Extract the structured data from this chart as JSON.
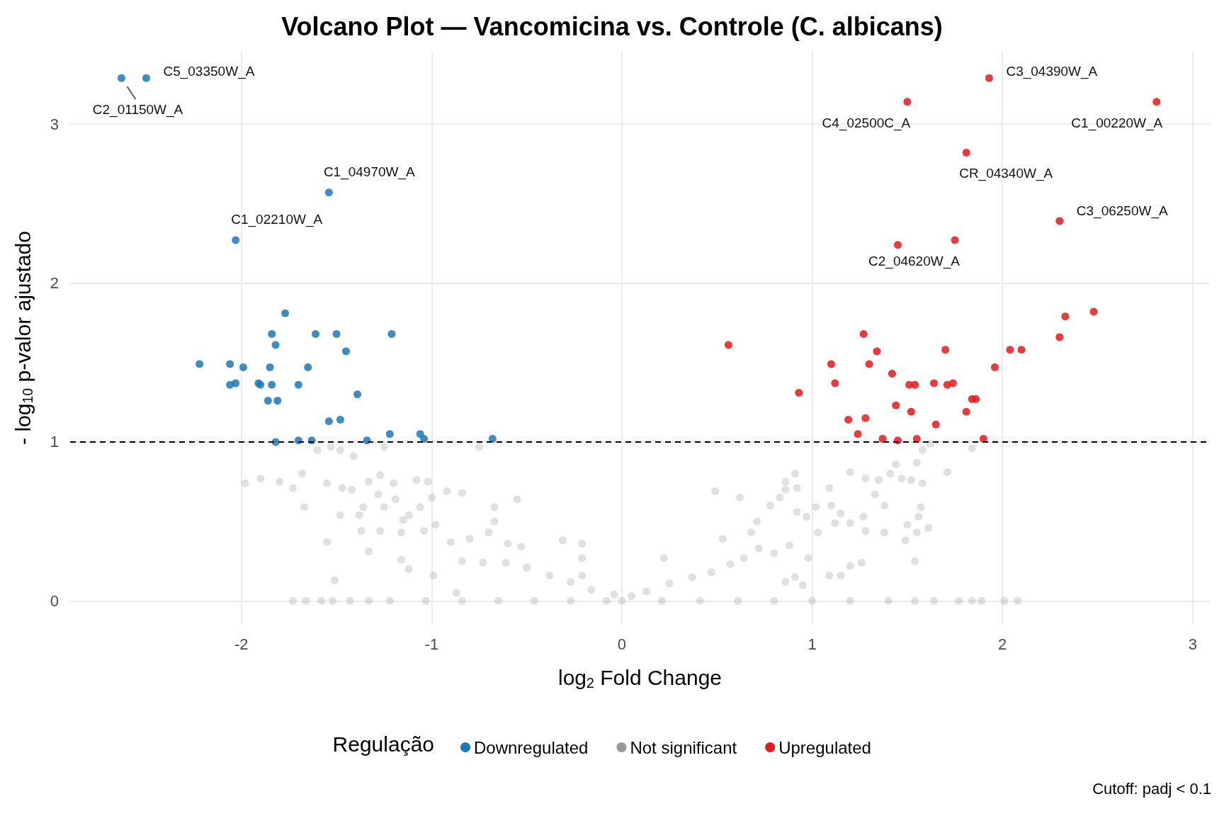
{
  "chart_data": {
    "type": "scatter",
    "title": "Volcano Plot — Vancomicina vs. Controle (C. albicans)",
    "xlabel": "log$_{2}$ Fold Change",
    "ylabel": "- log$_{10}$ p-valor ajustado",
    "legend_title": "Regulação",
    "xlim": [
      -2.9,
      3.09
    ],
    "xticks": [
      -2,
      -1,
      0,
      1,
      2,
      3
    ],
    "ylim": [
      -0.15,
      3.46
    ],
    "yticks": [
      0,
      1,
      2,
      3
    ],
    "grid": true,
    "legend": "bottom",
    "marker": "circle",
    "ref_lines": [
      {
        "axis": "y",
        "value": 1,
        "color": "#000000",
        "line_style": "dashed"
      }
    ],
    "series": [
      {
        "name": "Downregulated",
        "color": "#1f78b4",
        "x": [
          -2.63,
          -2.5,
          -2.03,
          -1.54,
          -1.77,
          -1.84,
          -1.61,
          -1.5,
          -1.21,
          -1.82,
          -1.45,
          -2.22,
          -2.06,
          -1.99,
          -1.85,
          -1.65,
          -2.06,
          -2.03,
          -1.91,
          -1.9,
          -1.84,
          -1.7,
          -1.39,
          -1.86,
          -1.81,
          -1.54,
          -1.48,
          -1.22,
          -1.06,
          -1.04,
          -1.82,
          -1.7,
          -1.63,
          -1.34,
          -0.68
        ],
        "values": [
          3.29,
          3.29,
          2.27,
          2.57,
          1.81,
          1.68,
          1.68,
          1.68,
          1.68,
          1.61,
          1.57,
          1.49,
          1.49,
          1.47,
          1.47,
          1.47,
          1.36,
          1.37,
          1.37,
          1.36,
          1.36,
          1.36,
          1.3,
          1.26,
          1.26,
          1.13,
          1.14,
          1.05,
          1.05,
          1.02,
          1.0,
          1.01,
          1.01,
          1.01,
          1.02
        ]
      },
      {
        "name": "Not significant",
        "color": "#999999",
        "x": [
          -1.98,
          -1.9,
          -1.8,
          -1.73,
          -1.68,
          -1.67,
          -1.6,
          -1.53,
          -1.48,
          -1.41,
          -1.25,
          -0.75,
          -1.55,
          -1.47,
          -1.42,
          -1.33,
          -1.27,
          -1.2,
          -1.08,
          -1.02,
          -1.55,
          -1.51,
          -1.48,
          -1.38,
          -1.36,
          -1.28,
          -1.25,
          -1.19,
          -1.15,
          -1.12,
          -1.06,
          -1.0,
          -0.92,
          -0.84,
          -0.67,
          -0.55,
          -0.67,
          -1.37,
          -1.33,
          -1.27,
          -1.16,
          -1.04,
          -0.98,
          -1.12,
          -1.16,
          -0.99,
          -0.9,
          -0.87,
          -0.8,
          -0.7,
          -0.6,
          -0.53,
          -0.31,
          -0.21,
          -0.21,
          -0.21,
          -0.84,
          -0.73,
          -0.61,
          -0.5,
          -0.38,
          -0.27,
          -0.16,
          -0.04,
          -1.73,
          -1.66,
          -1.58,
          -1.52,
          -1.43,
          -1.33,
          -1.22,
          -1.03,
          -0.84,
          -0.65,
          -0.46,
          -0.27,
          -0.08,
          0,
          1.62,
          1.58,
          1.84,
          1.71,
          1.55,
          1.44,
          1.2,
          0.91,
          0.86,
          0.86,
          0.92,
          0.83,
          0.78,
          0.49,
          0.62,
          0.71,
          0.68,
          0.53,
          0.22,
          0.92,
          0.97,
          1.02,
          1.09,
          1.1,
          1.15,
          1.28,
          1.35,
          1.41,
          1.47,
          1.52,
          1.58,
          1.57,
          1.56,
          1.5,
          1.61,
          1.55,
          1.49,
          1.54,
          1.38,
          1.33,
          1.27,
          1.2,
          1.12,
          1.03,
          1.28,
          1.38,
          1.26,
          1.2,
          1.15,
          1.09,
          0.95,
          0.91,
          0.86,
          0.98,
          0.88,
          0.8,
          0.72,
          0.64,
          0.57,
          0.47,
          0.37,
          0.25,
          0.13,
          0.05,
          0.21,
          0.41,
          0.61,
          0.8,
          1.0,
          1.2,
          1.4,
          1.54,
          1.64,
          1.77,
          1.84,
          1.89,
          2.01,
          2.08
        ],
        "values": [
          0.74,
          0.77,
          0.75,
          0.71,
          0.8,
          0.59,
          0.95,
          0.97,
          0.95,
          0.91,
          0.97,
          0.97,
          0.74,
          0.71,
          0.7,
          0.75,
          0.79,
          0.74,
          0.76,
          0.75,
          0.37,
          0.13,
          0.54,
          0.54,
          0.59,
          0.67,
          0.59,
          0.64,
          0.51,
          0.54,
          0.59,
          0.65,
          0.69,
          0.68,
          0.59,
          0.64,
          0.5,
          0.44,
          0.31,
          0.44,
          0.43,
          0.44,
          0.48,
          0.2,
          0.26,
          0.16,
          0.37,
          0.05,
          0.39,
          0.43,
          0.36,
          0.34,
          0.38,
          0.36,
          0.27,
          0.16,
          0.25,
          0.24,
          0.24,
          0.21,
          0.16,
          0.12,
          0.07,
          0.04,
          0,
          0,
          0,
          0,
          0,
          0,
          0,
          0,
          0,
          0,
          0,
          0,
          0,
          0,
          0.99,
          0.95,
          0.96,
          0.81,
          0.87,
          0.86,
          0.81,
          0.8,
          0.75,
          0.7,
          0.71,
          0.65,
          0.6,
          0.69,
          0.65,
          0.5,
          0.43,
          0.39,
          0.27,
          0.56,
          0.53,
          0.59,
          0.71,
          0.6,
          0.55,
          0.77,
          0.76,
          0.8,
          0.77,
          0.76,
          0.74,
          0.59,
          0.53,
          0.48,
          0.46,
          0.43,
          0.38,
          0.25,
          0.6,
          0.67,
          0.53,
          0.49,
          0.49,
          0.43,
          0.44,
          0.43,
          0.24,
          0.22,
          0.16,
          0.16,
          0.1,
          0.15,
          0.12,
          0.27,
          0.35,
          0.3,
          0.33,
          0.27,
          0.23,
          0.18,
          0.15,
          0.11,
          0.06,
          0.03,
          0,
          0,
          0,
          0,
          0,
          0,
          0,
          0,
          0,
          0,
          0,
          0,
          0,
          0
        ]
      },
      {
        "name": "Upregulated",
        "color": "#e31a1c",
        "x": [
          1.93,
          1.5,
          2.81,
          1.81,
          2.3,
          1.45,
          1.75,
          2.48,
          2.33,
          2.3,
          0.56,
          1.27,
          1.34,
          1.7,
          2.04,
          2.1,
          1.1,
          1.3,
          1.96,
          1.42,
          1.12,
          1.51,
          1.54,
          1.64,
          1.71,
          1.74,
          0.93,
          1.84,
          1.86,
          1.44,
          1.52,
          1.81,
          1.19,
          1.28,
          1.65,
          1.24,
          1.37,
          1.45,
          1.55,
          1.9
        ],
        "values": [
          3.29,
          3.14,
          3.14,
          2.82,
          2.39,
          2.24,
          2.27,
          1.82,
          1.79,
          1.66,
          1.61,
          1.68,
          1.57,
          1.58,
          1.58,
          1.58,
          1.49,
          1.49,
          1.47,
          1.43,
          1.37,
          1.36,
          1.36,
          1.37,
          1.36,
          1.37,
          1.31,
          1.27,
          1.27,
          1.23,
          1.19,
          1.19,
          1.14,
          1.15,
          1.11,
          1.05,
          1.02,
          1.01,
          1.02,
          1.02
        ]
      }
    ],
    "annotations": [
      {
        "text": "C5_03350W_A",
        "x": -2.5,
        "y": 3.29
      },
      {
        "text": "C2_01150W_A",
        "x": -2.63,
        "y": 3.29
      },
      {
        "text": "C1_04970W_A",
        "x": -1.54,
        "y": 2.57
      },
      {
        "text": "C1_02210W_A",
        "x": -2.03,
        "y": 2.27
      },
      {
        "text": "C3_04390W_A",
        "x": 1.93,
        "y": 3.29
      },
      {
        "text": "C4_02500C_A",
        "x": 1.5,
        "y": 3.14
      },
      {
        "text": "C1_00220W_A",
        "x": 2.81,
        "y": 3.14
      },
      {
        "text": "CR_04340W_A",
        "x": 1.81,
        "y": 2.82
      },
      {
        "text": "C3_06250W_A",
        "x": 2.3,
        "y": 2.39
      },
      {
        "text": "C2_04620W_A",
        "x": 1.45,
        "y": 2.24
      },
      "Cutoff: padj < 0.1"
    ]
  }
}
